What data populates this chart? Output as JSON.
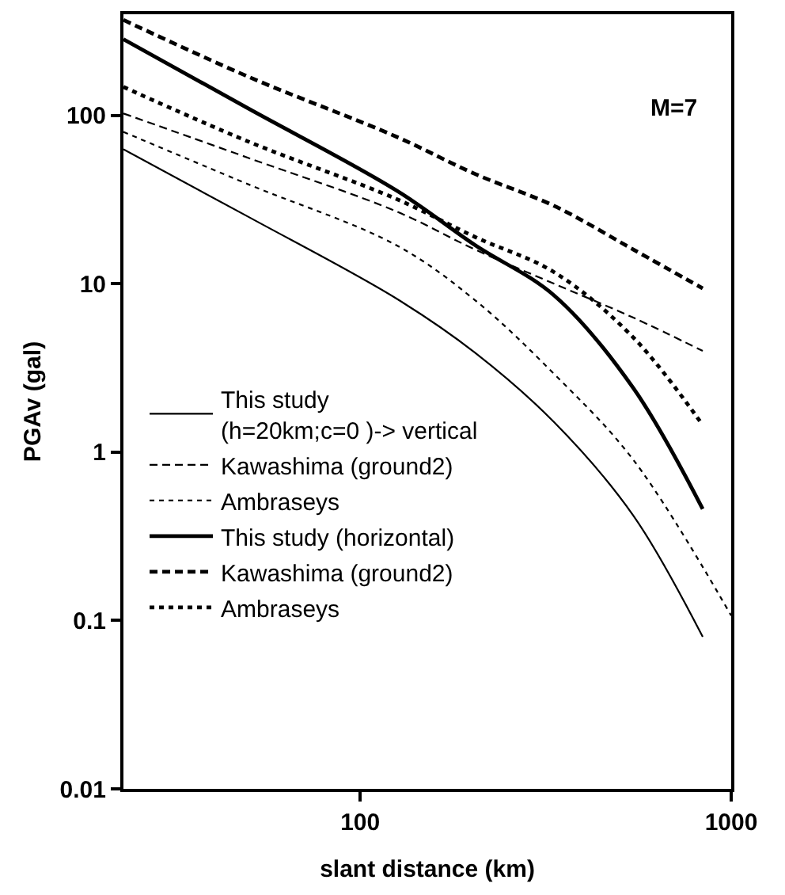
{
  "chart_data": {
    "type": "line",
    "xlabel": "slant distance (km)",
    "ylabel": "PGAv (gal)",
    "log": "xy",
    "x": [
      23,
      50,
      125,
      204,
      334,
      545,
      838
    ],
    "xlim": [
      23,
      1000
    ],
    "xticks": [
      100,
      1000
    ],
    "ylim": [
      0.01,
      400
    ],
    "yticks": [
      0.01,
      0.1,
      1,
      10,
      100
    ],
    "grid": false,
    "legend": "bottom left",
    "marker": "none",
    "annotations": [
      "M=7"
    ],
    "series": [
      {
        "name": "This study\n(h=20km;c=0 )-> vertical",
        "color": "#000000",
        "line_style": "solid",
        "values": [
          63,
          25,
          8.2,
          3.9,
          1.5,
          0.42,
          0.08
        ]
      },
      {
        "name": "Kawashima (ground2)",
        "color": "#000000",
        "line_style": "dashed",
        "values": [
          103,
          56,
          27,
          16,
          10,
          6.3,
          4.0
        ]
      },
      {
        "name": "Ambraseys",
        "color": "#000000",
        "line_style": "dotted",
        "x": [
          23,
          50,
          125,
          204,
          334,
          545,
          1000
        ],
        "values": [
          80,
          39,
          17,
          8,
          2.9,
          0.9,
          0.107
        ]
      },
      {
        "name": "This study (horizontal)",
        "color": "#000000",
        "line_style": "solid",
        "values": [
          284,
          110,
          36,
          17,
          8.5,
          2.4,
          0.46
        ]
      },
      {
        "name": "Kawashima (ground2)",
        "color": "#000000",
        "line_style": "dashed",
        "values": [
          370,
          170,
          75,
          45,
          29,
          16,
          9.4
        ]
      },
      {
        "name": "Ambraseys",
        "color": "#000000",
        "line_style": "dotted",
        "values": [
          148,
          70,
          32,
          19,
          11.7,
          4.8,
          1.45
        ]
      }
    ]
  }
}
